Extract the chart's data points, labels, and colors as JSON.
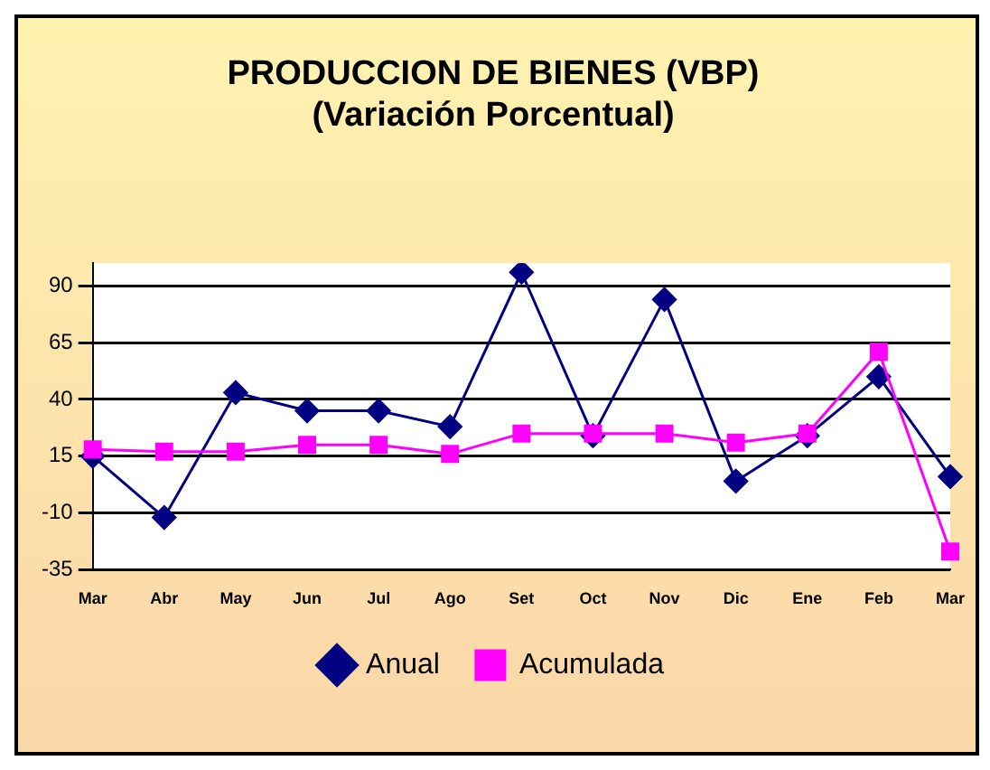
{
  "chart_data": {
    "type": "line",
    "title": [
      "PRODUCCION DE BIENES (VBP)",
      "(Variación Porcentual)"
    ],
    "categories": [
      "Mar",
      "Abr",
      "May",
      "Jun",
      "Jul",
      "Ago",
      "Set",
      "Oct",
      "Nov",
      "Dic",
      "Ene",
      "Feb",
      "Mar"
    ],
    "series": [
      {
        "name": "Anual",
        "color": "#000080",
        "marker": "diamond",
        "values": [
          15,
          -12,
          43,
          35,
          35,
          28,
          96,
          24,
          84,
          4,
          24,
          50,
          6
        ]
      },
      {
        "name": "Acumulada",
        "color": "#ff00ff",
        "marker": "square",
        "values": [
          18,
          17,
          17,
          20,
          20,
          16,
          25,
          25,
          25,
          21,
          25,
          61,
          -27
        ]
      }
    ],
    "ylim": [
      -35,
      100
    ],
    "yticks": [
      -35,
      -10,
      15,
      40,
      65,
      90
    ],
    "grid": "y",
    "legend": "bottom"
  }
}
